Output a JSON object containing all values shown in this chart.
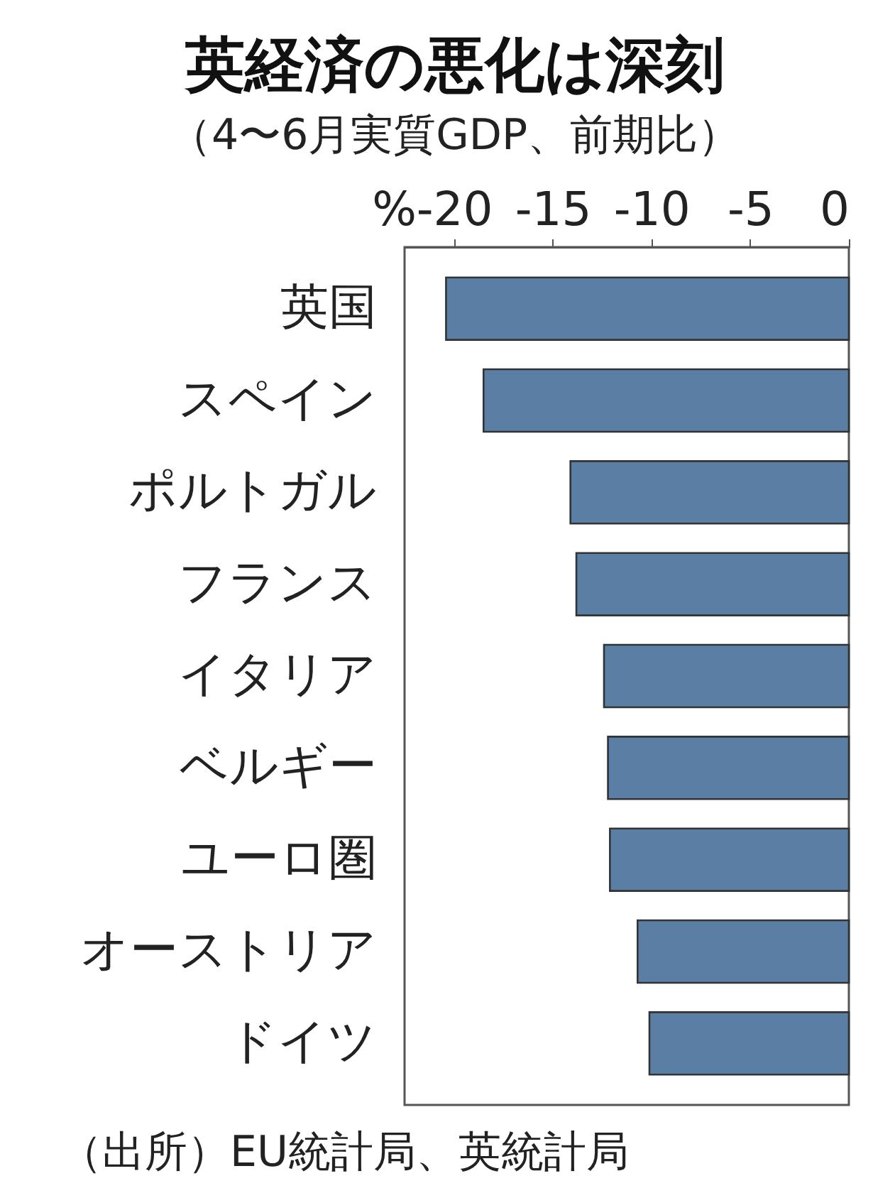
{
  "chart_data": {
    "type": "bar",
    "orientation": "horizontal",
    "title": "英経済の悪化は深刻",
    "subtitle": "（4〜6月実質GDP、前期比）",
    "xlabel": "%",
    "categories": [
      "英国",
      "スペイン",
      "ポルトガル",
      "フランス",
      "イタリア",
      "ベルギー",
      "ユーロ圏",
      "オーストリア",
      "ドイツ"
    ],
    "values": [
      -20.4,
      -18.5,
      -14.1,
      -13.8,
      -12.4,
      -12.2,
      -12.1,
      -10.7,
      -10.1
    ],
    "color": "#5b7fa4",
    "xlim": [
      -22.5,
      0
    ],
    "xticks": [
      -20,
      -15,
      -10,
      -5,
      0
    ],
    "grid": false,
    "annotations": [
      "（出所）EU統計局、英統計局"
    ]
  }
}
